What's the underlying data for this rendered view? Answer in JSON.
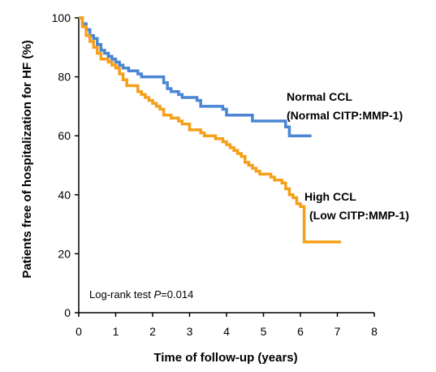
{
  "chart_data": {
    "type": "line",
    "title": "",
    "xlabel": "Time of follow-up (years)",
    "ylabel": "Patients free of hospitalization for HF (%)",
    "xlim": [
      0,
      8
    ],
    "ylim": [
      0,
      100
    ],
    "xticks": [
      "0",
      "1",
      "2",
      "3",
      "4",
      "5",
      "6",
      "7",
      "8"
    ],
    "yticks": [
      "0",
      "20",
      "40",
      "60",
      "80",
      "100"
    ],
    "grid": false,
    "annotation": {
      "prefix": "Log-rank test ",
      "p_symbol": "P",
      "suffix": "=0.014"
    },
    "series": [
      {
        "color": "#4a86d4",
        "label_lines": [
          "Normal CCL",
          "(Normal CITP:MMP-1)"
        ],
        "x": [
          0,
          0.1,
          0.2,
          0.3,
          0.4,
          0.5,
          0.6,
          0.7,
          0.8,
          0.9,
          1.0,
          1.1,
          1.2,
          1.35,
          1.5,
          1.6,
          1.7,
          2.2,
          2.3,
          2.4,
          2.5,
          2.7,
          2.8,
          3.2,
          3.3,
          3.5,
          3.9,
          4.0,
          4.6,
          4.7,
          5.5,
          5.6,
          5.7,
          6.3
        ],
        "y": [
          100,
          98,
          96,
          94,
          93,
          91,
          89,
          88,
          87,
          86,
          85,
          84,
          83,
          82,
          82,
          81,
          80,
          80,
          78,
          76,
          75,
          74,
          73,
          72,
          70,
          70,
          69,
          67,
          67,
          65,
          65,
          63,
          60,
          60
        ]
      },
      {
        "color": "#f5a01a",
        "label_lines": [
          "High CCL",
          "(Low CITP:MMP-1)"
        ],
        "x": [
          0,
          0.1,
          0.2,
          0.3,
          0.4,
          0.5,
          0.6,
          0.8,
          0.9,
          1.0,
          1.1,
          1.2,
          1.3,
          1.6,
          1.7,
          1.8,
          1.9,
          2.0,
          2.1,
          2.2,
          2.3,
          2.5,
          2.7,
          2.8,
          3.0,
          3.3,
          3.4,
          3.7,
          3.9,
          4.0,
          4.1,
          4.2,
          4.3,
          4.4,
          4.5,
          4.6,
          4.7,
          4.8,
          4.9,
          5.0,
          5.2,
          5.3,
          5.5,
          5.6,
          5.7,
          5.8,
          5.9,
          6.0,
          6.1,
          7.1
        ],
        "y": [
          100,
          97,
          94,
          92,
          90,
          88,
          86,
          85,
          84,
          83,
          81,
          79,
          77,
          75,
          74,
          73,
          72,
          71,
          70,
          69,
          67,
          66,
          65,
          64,
          62,
          61,
          60,
          59,
          58,
          57,
          56,
          55,
          54,
          53,
          51,
          50,
          49,
          48,
          47,
          47,
          46,
          45,
          44,
          42,
          40,
          39,
          37,
          36,
          24,
          24
        ]
      }
    ]
  }
}
